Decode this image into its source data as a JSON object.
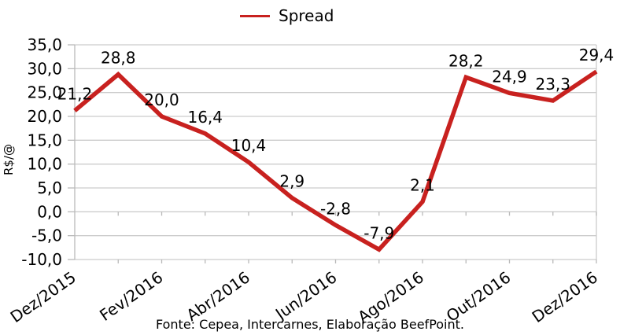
{
  "legend": {
    "label": "Spread",
    "line_color": "#c8211f"
  },
  "footer": {
    "source_note": "Fonte: Cepea, Intercarnes, Elaboração BeefPoint."
  },
  "chart_data": {
    "type": "line",
    "title": "",
    "xlabel": "",
    "ylabel": "R$/@",
    "point_count": 13,
    "series": [
      {
        "name": "Spread",
        "color": "#c8211f",
        "values": [
          21.2,
          28.8,
          20.0,
          16.4,
          10.4,
          2.9,
          -2.8,
          -7.9,
          2.1,
          28.2,
          24.9,
          23.3,
          29.4
        ]
      }
    ],
    "value_labels": [
      "21,2",
      "28,8",
      "20,0",
      "16,4",
      "10,4",
      "2,9",
      "-2,8",
      "-7,9",
      "2,1",
      "28,2",
      "24,9",
      "23,3",
      "29,4"
    ],
    "x_tick_labels": [
      "Dez/2015",
      "Fev/2016",
      "Abr/2016",
      "Jun/2016",
      "Ago/2016",
      "Out/2016",
      "Dez/2016"
    ],
    "x_tick_positions": [
      0,
      2,
      4,
      6,
      8,
      10,
      12
    ],
    "ylim": [
      -10,
      35
    ],
    "y_tick_step": 5,
    "y_tick_labels": [
      "35,0",
      "30,0",
      "25,0",
      "20,0",
      "15,0",
      "10,0",
      "5,0",
      "0,0",
      "-5,0",
      "-10,0"
    ],
    "grid": true,
    "legend_position": "top-center",
    "colors": {
      "series": "#c8211f",
      "grid": "#cccccc",
      "axis": "#b9b9b9",
      "text": "#000000",
      "background": "#ffffff"
    }
  }
}
